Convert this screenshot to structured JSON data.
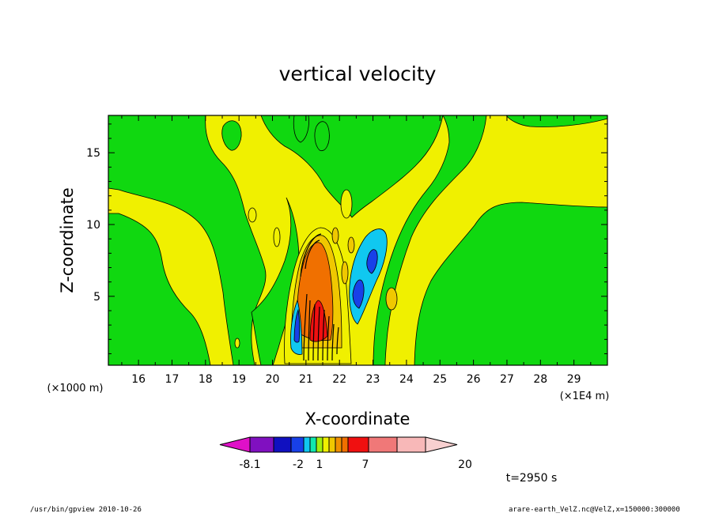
{
  "chart_data": {
    "type": "heatmap",
    "title": "vertical velocity",
    "xlabel": "X-coordinate",
    "ylabel": "Z-coordinate",
    "x_unit_left": "(×1000 m)",
    "x_unit_right": "(×1E4 m)",
    "xlim": [
      15.1,
      30.0
    ],
    "ylim": [
      0.2,
      17.6
    ],
    "x_ticks": [
      "16",
      "17",
      "18",
      "19",
      "20",
      "21",
      "22",
      "23",
      "24",
      "25",
      "26",
      "27",
      "28",
      "29"
    ],
    "y_ticks": [
      "5",
      "10",
      "15"
    ],
    "y_tick_values": [
      5,
      10,
      15
    ],
    "color_levels": [
      "#e010c8",
      "#8010c0",
      "#1010c0",
      "#1840e8",
      "#10c8f0",
      "#10e8b0",
      "#a0f010",
      "#f0f000",
      "#f0c800",
      "#f09000",
      "#f07000",
      "#f01010",
      "#f07878",
      "#f8b8b8",
      "#f8d0d0"
    ],
    "colorbar_labels": [
      {
        "text": "-8.1",
        "value": -8.1
      },
      {
        "text": "-2",
        "value": -2
      },
      {
        "text": "1",
        "value": 1
      },
      {
        "text": "7",
        "value": 7
      },
      {
        "text": "20",
        "value": 20
      }
    ],
    "time_label": "t=2950 s",
    "background_level": "#10d810",
    "weak_positive_level": "#f0f000"
  },
  "footer": {
    "left": "/usr/bin/gpview   2010-10-26",
    "right": "arare-earth_VelZ.nc@VelZ,x=150000:300000"
  }
}
